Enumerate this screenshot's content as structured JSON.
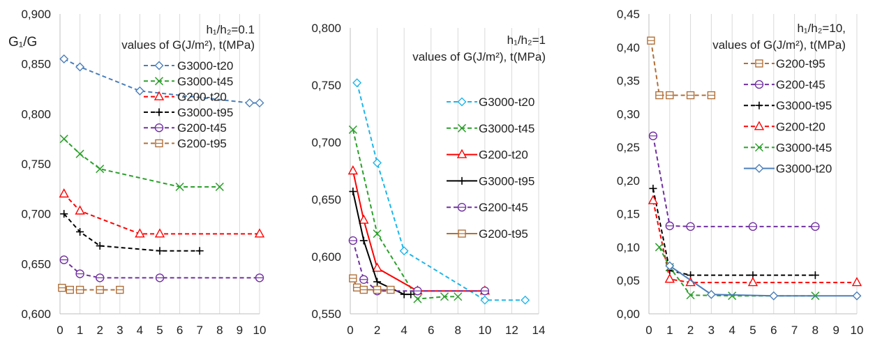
{
  "chart_data": [
    {
      "type": "scatter",
      "ylabel": "G₁/G",
      "annotation": [
        "h₁/h₂=0.1",
        "values of G(J/m²), t(MPa)"
      ],
      "legend_position": "top-right",
      "grid": "vertical",
      "xlim": [
        0,
        10
      ],
      "xticks": [
        0,
        1,
        2,
        3,
        4,
        5,
        6,
        7,
        8,
        9,
        10
      ],
      "ylim": [
        0.6,
        0.9
      ],
      "yticks": [
        0.6,
        0.65,
        0.7,
        0.75,
        0.8,
        0.85,
        0.9
      ],
      "ytick_decimals": 3,
      "series": [
        {
          "name": "G3000-t20",
          "color": "#4a7ebb",
          "marker": "diamond",
          "dash": "dash",
          "x": [
            0.2,
            1,
            4,
            9.5,
            10
          ],
          "y": [
            0.855,
            0.847,
            0.823,
            0.811,
            0.811
          ]
        },
        {
          "name": "G3000-t45",
          "color": "#2ca02c",
          "marker": "x",
          "dash": "dash",
          "x": [
            0.2,
            1,
            2,
            6,
            8
          ],
          "y": [
            0.775,
            0.76,
            0.745,
            0.727,
            0.727
          ]
        },
        {
          "name": "G200-t20",
          "color": "#ff0000",
          "marker": "triangle",
          "dash": "dash",
          "x": [
            0.2,
            1,
            4,
            5,
            10
          ],
          "y": [
            0.72,
            0.703,
            0.68,
            0.68,
            0.68
          ]
        },
        {
          "name": "G3000-t95",
          "color": "#000000",
          "marker": "plus",
          "dash": "dash",
          "x": [
            0.2,
            1,
            2,
            5,
            7
          ],
          "y": [
            0.7,
            0.682,
            0.668,
            0.663,
            0.663
          ]
        },
        {
          "name": "G200-t45",
          "color": "#7030a0",
          "marker": "circle",
          "dash": "dash",
          "x": [
            0.2,
            1,
            2,
            5,
            10
          ],
          "y": [
            0.654,
            0.64,
            0.636,
            0.636,
            0.636
          ]
        },
        {
          "name": "G200-t95",
          "color": "#b0703a",
          "marker": "square",
          "dash": "dash",
          "x": [
            0.1,
            0.5,
            1,
            2,
            3
          ],
          "y": [
            0.626,
            0.624,
            0.624,
            0.624,
            0.624
          ]
        }
      ]
    },
    {
      "type": "scatter",
      "annotation": [
        "h₁/h₂=1",
        "values of G(J/m²), t(MPa)"
      ],
      "legend_position": "right",
      "grid": "vertical",
      "xlim": [
        0,
        14
      ],
      "xticks": [
        0,
        2,
        4,
        6,
        8,
        10,
        12,
        14
      ],
      "ylim": [
        0.55,
        0.8
      ],
      "yticks": [
        0.55,
        0.6,
        0.65,
        0.7,
        0.75,
        0.8
      ],
      "ytick_decimals": 3,
      "series": [
        {
          "name": "G3000-t20",
          "color": "#1fb5e8",
          "marker": "diamond",
          "dash": "dash",
          "x": [
            0.5,
            2,
            4,
            10,
            13
          ],
          "y": [
            0.752,
            0.682,
            0.605,
            0.562,
            0.562
          ]
        },
        {
          "name": "G3000-t45",
          "color": "#2ca02c",
          "marker": "x",
          "dash": "dash",
          "x": [
            0.2,
            2,
            5,
            7,
            8
          ],
          "y": [
            0.711,
            0.62,
            0.563,
            0.565,
            0.565
          ]
        },
        {
          "name": "G200-t20",
          "color": "#ff0000",
          "marker": "triangle",
          "dash": "solid",
          "x": [
            0.2,
            1,
            2,
            5,
            10
          ],
          "y": [
            0.675,
            0.632,
            0.59,
            0.57,
            0.57
          ]
        },
        {
          "name": "G3000-t95",
          "color": "#000000",
          "marker": "plus",
          "dash": "solid",
          "x": [
            0.2,
            1,
            2,
            4,
            4.5
          ],
          "y": [
            0.657,
            0.614,
            0.578,
            0.567,
            0.567
          ]
        },
        {
          "name": "G200-t45",
          "color": "#7030a0",
          "marker": "circle",
          "dash": "dash",
          "x": [
            0.2,
            1,
            2,
            5,
            10
          ],
          "y": [
            0.614,
            0.58,
            0.57,
            0.57,
            0.57
          ]
        },
        {
          "name": "G200-t95",
          "color": "#b0703a",
          "marker": "square",
          "dash": "solid",
          "x": [
            0.2,
            0.5,
            1,
            2,
            3
          ],
          "y": [
            0.581,
            0.573,
            0.571,
            0.571,
            0.571
          ]
        }
      ]
    },
    {
      "type": "scatter",
      "annotation": [
        "h₁/h₂=10,",
        "values of G(J/m²), t(MPa)"
      ],
      "legend_position": "right",
      "grid": "vertical",
      "xlim": [
        0,
        10
      ],
      "xticks": [
        0,
        1,
        2,
        3,
        4,
        5,
        6,
        7,
        8,
        9,
        10
      ],
      "ylim": [
        0,
        0.45
      ],
      "yticks": [
        0,
        0.05,
        0.1,
        0.15,
        0.2,
        0.25,
        0.3,
        0.35,
        0.4,
        0.45
      ],
      "ytick_decimals": 2,
      "series": [
        {
          "name": "G200-t95",
          "color": "#b0703a",
          "marker": "square",
          "dash": "dash",
          "x": [
            0.1,
            0.5,
            1,
            2,
            3
          ],
          "y": [
            0.41,
            0.328,
            0.328,
            0.328,
            0.328
          ]
        },
        {
          "name": "G200-t45",
          "color": "#7030a0",
          "marker": "circle",
          "dash": "dash",
          "x": [
            0.2,
            1,
            2,
            5,
            8
          ],
          "y": [
            0.267,
            0.132,
            0.131,
            0.131,
            0.131
          ]
        },
        {
          "name": "G3000-t95",
          "color": "#000000",
          "marker": "plus",
          "dash": "dash",
          "x": [
            0.2,
            1,
            2,
            5,
            8
          ],
          "y": [
            0.188,
            0.065,
            0.058,
            0.058,
            0.058
          ]
        },
        {
          "name": "G200-t20",
          "color": "#ff0000",
          "marker": "triangle",
          "dash": "dash",
          "x": [
            0.2,
            1,
            2,
            5,
            10
          ],
          "y": [
            0.17,
            0.052,
            0.047,
            0.047,
            0.047
          ]
        },
        {
          "name": "G3000-t45",
          "color": "#2ca02c",
          "marker": "x",
          "dash": "dash",
          "x": [
            0.5,
            1,
            2,
            4,
            8
          ],
          "y": [
            0.1,
            0.07,
            0.028,
            0.027,
            0.027
          ]
        },
        {
          "name": "G3000-t20",
          "color": "#4a7ebb",
          "marker": "diamond",
          "dash": "solid",
          "x": [
            1,
            3,
            6,
            10
          ],
          "y": [
            0.072,
            0.029,
            0.027,
            0.027
          ]
        }
      ]
    }
  ]
}
